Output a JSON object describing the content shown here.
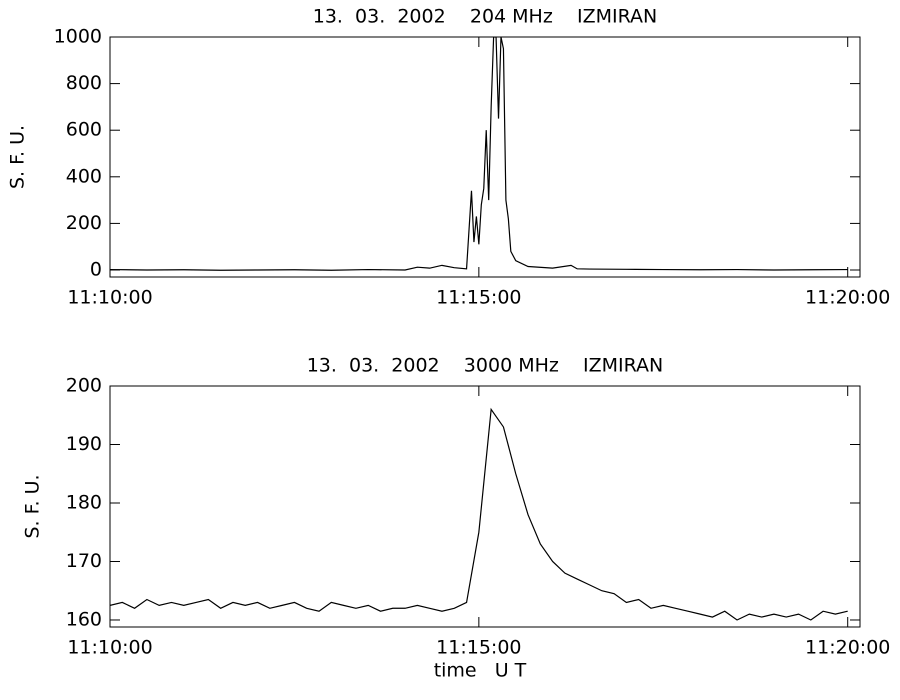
{
  "chart_data": [
    {
      "type": "line",
      "title": "13.  03.  2002    204 MHz    IZMIRAN",
      "ylabel": "S. F. U.",
      "color": "#000000",
      "xlim": [
        "11:10:00",
        "11:20:10"
      ],
      "xticks": [
        "11:10:00",
        "11:15:00",
        "11:20:00"
      ],
      "ylim": [
        -30,
        1000
      ],
      "yticks": [
        0,
        200,
        400,
        600,
        800,
        1000
      ],
      "x": [
        "11:10:00",
        "11:10:30",
        "11:11:00",
        "11:11:30",
        "11:12:00",
        "11:12:30",
        "11:13:00",
        "11:13:30",
        "11:14:00",
        "11:14:10",
        "11:14:20",
        "11:14:30",
        "11:14:40",
        "11:14:50",
        "11:14:54",
        "11:14:56",
        "11:14:58",
        "11:15:00",
        "11:15:02",
        "11:15:04",
        "11:15:06",
        "11:15:08",
        "11:15:10",
        "11:15:12",
        "11:15:14",
        "11:15:16",
        "11:15:18",
        "11:15:20",
        "11:15:22",
        "11:15:24",
        "11:15:26",
        "11:15:30",
        "11:15:40",
        "11:16:00",
        "11:16:15",
        "11:16:20",
        "11:16:30",
        "11:17:00",
        "11:17:30",
        "11:18:00",
        "11:18:30",
        "11:19:00",
        "11:19:30",
        "11:20:00"
      ],
      "values": [
        2,
        0,
        1,
        -1,
        0,
        1,
        -1,
        2,
        0,
        12,
        8,
        20,
        10,
        5,
        340,
        120,
        230,
        110,
        280,
        350,
        600,
        300,
        700,
        1000,
        1000,
        650,
        1000,
        950,
        300,
        220,
        80,
        40,
        15,
        8,
        20,
        5,
        4,
        3,
        2,
        1,
        2,
        0,
        1,
        2
      ]
    },
    {
      "type": "line",
      "title": "13.  03.  2002    3000 MHz    IZMIRAN",
      "ylabel": "S. F. U.",
      "xlabel": "time   U T",
      "color": "#000000",
      "xlim": [
        "11:10:00",
        "11:20:10"
      ],
      "xticks": [
        "11:10:00",
        "11:15:00",
        "11:20:00"
      ],
      "ylim": [
        158.8,
        200
      ],
      "yticks": [
        160,
        170,
        180,
        190,
        200
      ],
      "x": [
        "11:10:00",
        "11:10:10",
        "11:10:20",
        "11:10:30",
        "11:10:40",
        "11:10:50",
        "11:11:00",
        "11:11:10",
        "11:11:20",
        "11:11:30",
        "11:11:40",
        "11:11:50",
        "11:12:00",
        "11:12:10",
        "11:12:20",
        "11:12:30",
        "11:12:40",
        "11:12:50",
        "11:13:00",
        "11:13:10",
        "11:13:20",
        "11:13:30",
        "11:13:40",
        "11:13:50",
        "11:14:00",
        "11:14:10",
        "11:14:20",
        "11:14:30",
        "11:14:40",
        "11:14:50",
        "11:15:00",
        "11:15:10",
        "11:15:20",
        "11:15:30",
        "11:15:40",
        "11:15:50",
        "11:16:00",
        "11:16:10",
        "11:16:20",
        "11:16:30",
        "11:16:40",
        "11:16:50",
        "11:17:00",
        "11:17:10",
        "11:17:20",
        "11:17:30",
        "11:17:40",
        "11:17:50",
        "11:18:00",
        "11:18:10",
        "11:18:20",
        "11:18:30",
        "11:18:40",
        "11:18:50",
        "11:19:00",
        "11:19:10",
        "11:19:20",
        "11:19:30",
        "11:19:40",
        "11:19:50",
        "11:20:00"
      ],
      "values": [
        162.5,
        163,
        162,
        163.5,
        162.5,
        163,
        162.5,
        163,
        163.5,
        162,
        163,
        162.5,
        163,
        162,
        162.5,
        163,
        162,
        161.5,
        163,
        162.5,
        162,
        162.5,
        161.5,
        162,
        162,
        162.5,
        162,
        161.5,
        162,
        163,
        175,
        196,
        193,
        185,
        178,
        173,
        170,
        168,
        167,
        166,
        165,
        164.5,
        163,
        163.5,
        162,
        162.5,
        162,
        161.5,
        161,
        160.5,
        161.5,
        160,
        161,
        160.5,
        161,
        160.5,
        161,
        160,
        161.5,
        161,
        161.5
      ]
    }
  ]
}
